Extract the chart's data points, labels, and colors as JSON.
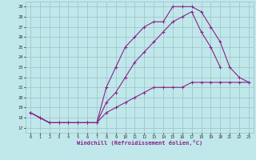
{
  "xlabel": "Windchill (Refroidissement éolien,°C)",
  "xlim": [
    -0.5,
    23.5
  ],
  "ylim": [
    16.5,
    29.5
  ],
  "yticks": [
    17,
    18,
    19,
    20,
    21,
    22,
    23,
    24,
    25,
    26,
    27,
    28,
    29
  ],
  "xticks": [
    0,
    1,
    2,
    3,
    4,
    5,
    6,
    7,
    8,
    9,
    10,
    11,
    12,
    13,
    14,
    15,
    16,
    17,
    18,
    19,
    20,
    21,
    22,
    23
  ],
  "bg_color": "#c0e8ea",
  "grid_color": "#9bbfc8",
  "line_color": "#882288",
  "lines": [
    {
      "x": [
        0,
        1,
        2,
        3,
        4,
        5,
        6,
        7,
        8,
        9,
        10,
        11,
        12,
        13,
        14,
        15,
        16,
        17,
        18,
        19,
        20,
        21,
        22,
        23
      ],
      "y": [
        18.5,
        18.0,
        17.5,
        17.5,
        17.5,
        17.5,
        17.5,
        17.5,
        21.0,
        23.0,
        25.0,
        26.0,
        27.0,
        27.5,
        27.5,
        29.0,
        29.0,
        29.0,
        28.5,
        27.0,
        25.5,
        23.0,
        22.0,
        21.5
      ]
    },
    {
      "x": [
        0,
        1,
        2,
        3,
        4,
        5,
        6,
        7,
        8,
        9,
        10,
        11,
        12,
        13,
        14,
        15,
        16,
        17,
        18,
        19,
        20
      ],
      "y": [
        18.5,
        18.0,
        17.5,
        17.5,
        17.5,
        17.5,
        17.5,
        17.5,
        19.5,
        20.5,
        22.0,
        23.5,
        24.5,
        25.5,
        26.5,
        27.5,
        28.0,
        28.5,
        26.5,
        25.0,
        23.0
      ]
    },
    {
      "x": [
        0,
        1,
        2,
        3,
        4,
        5,
        6,
        7,
        8,
        9,
        10,
        11,
        12,
        13,
        14,
        15,
        16,
        17,
        18,
        19,
        20,
        21,
        22,
        23
      ],
      "y": [
        18.5,
        18.0,
        17.5,
        17.5,
        17.5,
        17.5,
        17.5,
        17.5,
        18.5,
        19.0,
        19.5,
        20.0,
        20.5,
        21.0,
        21.0,
        21.0,
        21.0,
        21.5,
        21.5,
        21.5,
        21.5,
        21.5,
        21.5,
        21.5
      ]
    }
  ]
}
